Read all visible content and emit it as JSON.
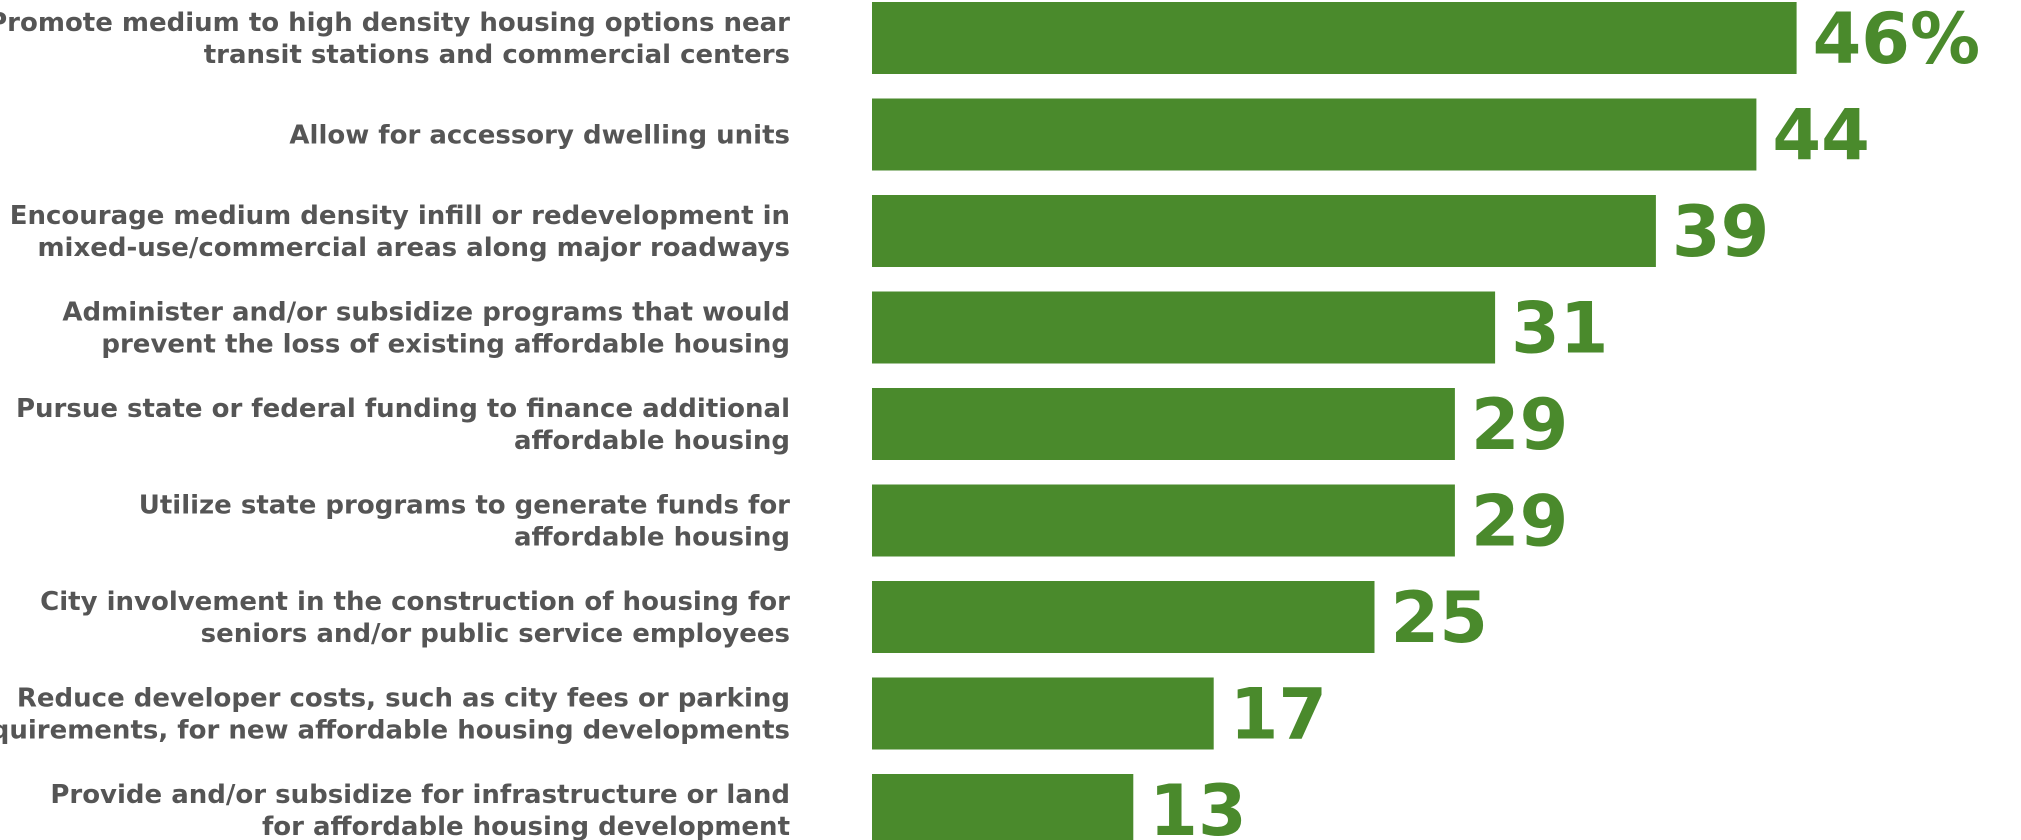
{
  "chart_data": {
    "type": "bar",
    "orientation": "horizontal",
    "categories": [
      [
        "Promote medium to high density housing options near",
        "transit stations and commercial centers"
      ],
      [
        "Allow for accessory dwelling units"
      ],
      [
        "Encourage medium density infill or redevelopment in",
        "mixed-use/commercial areas along major roadways"
      ],
      [
        "Administer and/or subsidize programs that would",
        "prevent the loss of existing affordable housing"
      ],
      [
        "Pursue state or federal funding to finance additional",
        "affordable housing"
      ],
      [
        "Utilize state programs to generate funds for",
        "affordable housing"
      ],
      [
        "City involvement in the construction of housing for",
        "seniors and/or public service employees"
      ],
      [
        "Reduce developer costs, such as city fees or parking",
        "requirements, for new affordable housing developments"
      ],
      [
        "Provide and/or subsidize for infrastructure or land",
        "for affordable housing development"
      ]
    ],
    "values": [
      46,
      44,
      39,
      31,
      29,
      29,
      25,
      17,
      13
    ],
    "value_labels": [
      "46%",
      "44",
      "39",
      "31",
      "29",
      "29",
      "25",
      "17",
      "13"
    ],
    "title": "",
    "xlabel": "",
    "ylabel": "",
    "grid": false,
    "colors": {
      "bar": "#4a8a2c",
      "value_label": "#4a8a2c",
      "category_label": "#555555"
    }
  }
}
